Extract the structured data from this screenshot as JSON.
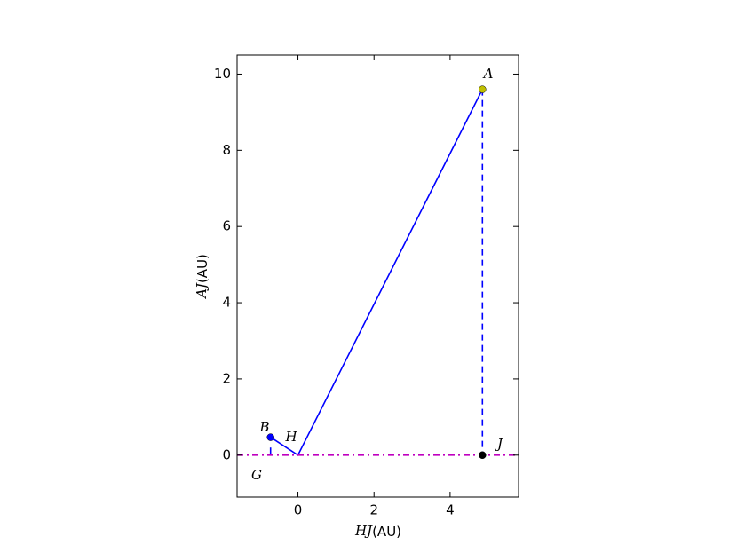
{
  "chart_data": {
    "type": "line",
    "xlabel": {
      "math": "HJ",
      "unit": "(AU)"
    },
    "ylabel": {
      "math": "AJ",
      "unit": "(AU)"
    },
    "xlim": [
      -1.6,
      5.8
    ],
    "ylim": [
      -1.1,
      10.5
    ],
    "xticks": [
      0,
      2,
      4
    ],
    "yticks": [
      0,
      2,
      4,
      6,
      8,
      10
    ],
    "series": [
      {
        "color": "#0000ff",
        "style": "solid",
        "x": [
          -0.72,
          0,
          4.85
        ],
        "values": [
          0.47,
          0,
          9.6
        ]
      },
      {
        "color": "#0000ff",
        "style": "dashed",
        "x": [
          4.85,
          4.85
        ],
        "values": [
          9.6,
          0
        ]
      },
      {
        "color": "#0000ff",
        "style": "dashed",
        "x": [
          -0.72,
          -0.72
        ],
        "values": [
          0.2,
          0
        ]
      },
      {
        "color": "#bf00bf",
        "style": "dashdot",
        "x": [
          -1.6,
          5.8
        ],
        "values": [
          0,
          0
        ]
      }
    ],
    "points": [
      {
        "x": 4.85,
        "y": 9.6,
        "color": "#bfbf00"
      },
      {
        "x": -0.72,
        "y": 0.47,
        "color": "#0000ff"
      },
      {
        "x": 4.85,
        "y": 0,
        "color": "#000000"
      }
    ],
    "annotations": [
      "A",
      "B",
      "H",
      "J",
      "G"
    ]
  }
}
